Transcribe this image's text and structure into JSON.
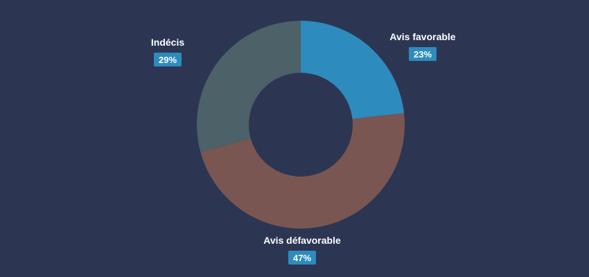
{
  "chart_data": {
    "type": "pie",
    "style": "donut",
    "slices": [
      {
        "label": "Avis favorable",
        "value": 23,
        "display": "23%",
        "color": "#2e8bbd"
      },
      {
        "label": "Avis défavorable",
        "value": 47,
        "display": "47%",
        "color": "#7a5652"
      },
      {
        "label": "Indécis",
        "value": 29,
        "display": "29%",
        "color": "#4c6168"
      }
    ],
    "label_color": "#ffffff",
    "badge_color": "#2e8bbd",
    "background": "#2c3653"
  }
}
